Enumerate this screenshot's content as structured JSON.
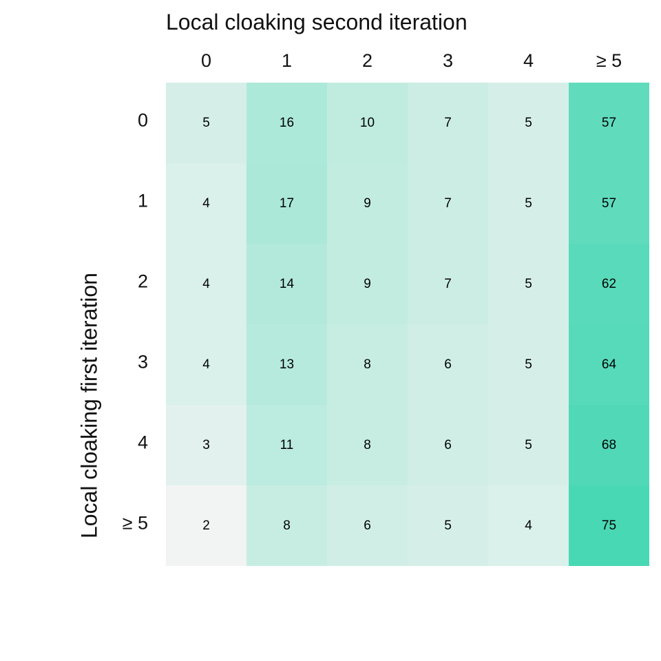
{
  "chart_data": {
    "type": "heatmap",
    "title": "Local cloaking second iteration",
    "xlabel": "Local cloaking second iteration",
    "ylabel": "Local cloaking first iteration",
    "x_categories": [
      "0",
      "1",
      "2",
      "3",
      "4",
      "≥ 5"
    ],
    "y_categories": [
      "0",
      "1",
      "2",
      "3",
      "4",
      "≥ 5"
    ],
    "values": [
      [
        5,
        16,
        10,
        7,
        5,
        57
      ],
      [
        4,
        17,
        9,
        7,
        5,
        57
      ],
      [
        4,
        14,
        9,
        7,
        5,
        62
      ],
      [
        4,
        13,
        8,
        6,
        5,
        64
      ],
      [
        3,
        11,
        8,
        6,
        5,
        68
      ],
      [
        2,
        8,
        6,
        5,
        4,
        75
      ]
    ],
    "colors": {
      "low": "#f2f4f3",
      "high": "#3fd6b0"
    },
    "x_axis_position": "top",
    "legend": "none",
    "grid": false
  }
}
